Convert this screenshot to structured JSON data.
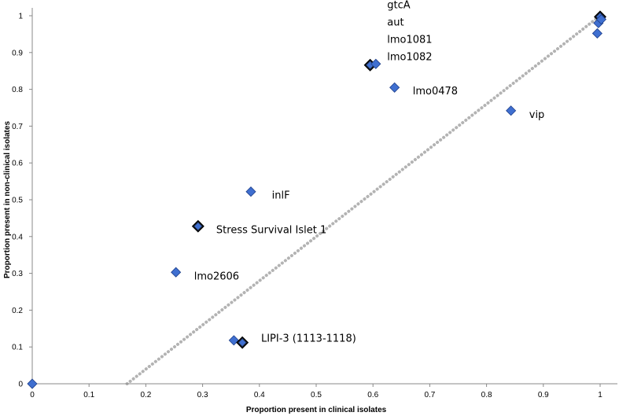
{
  "chart_data": {
    "type": "scatter",
    "xlabel": "Proportion present in clinical isolates",
    "ylabel": "Proportion present in non-clinical isolates",
    "xlim": [
      0,
      1
    ],
    "ylim": [
      0,
      1
    ],
    "x_ticks": [
      "0",
      "0.1",
      "0.2",
      "0.3",
      "0.4",
      "0.5",
      "0.6",
      "0.7",
      "0.8",
      "0.9",
      "1"
    ],
    "y_ticks": [
      "0",
      "0.1",
      "0.2",
      "0.3",
      "0.4",
      "0.5",
      "0.6",
      "0.7",
      "0.8",
      "0.9",
      "1"
    ],
    "grid": false,
    "marker_color": "#3f6fd0",
    "dark_marker_color": "#1c2a45",
    "trend_color": "#b3b3b3",
    "trendline": {
      "style": "dotted",
      "from": [
        0.167,
        0
      ],
      "to": [
        1,
        1
      ]
    },
    "points": [
      {
        "x": 0.0,
        "y": 0.0,
        "dark": false
      },
      {
        "x": 0.253,
        "y": 0.303,
        "dark": false
      },
      {
        "x": 0.292,
        "y": 0.428,
        "dark": true
      },
      {
        "x": 0.385,
        "y": 0.522,
        "dark": false
      },
      {
        "x": 0.355,
        "y": 0.118,
        "dark": false
      },
      {
        "x": 0.37,
        "y": 0.112,
        "dark": true
      },
      {
        "x": 0.595,
        "y": 0.866,
        "dark": true
      },
      {
        "x": 0.605,
        "y": 0.869,
        "dark": false
      },
      {
        "x": 0.638,
        "y": 0.805,
        "dark": false
      },
      {
        "x": 0.843,
        "y": 0.742,
        "dark": false
      },
      {
        "x": 0.995,
        "y": 0.952,
        "dark": false
      },
      {
        "x": 0.997,
        "y": 0.98,
        "dark": false
      },
      {
        "x": 1.0,
        "y": 0.997,
        "dark": true
      },
      {
        "x": 1.002,
        "y": 0.99,
        "dark": false
      }
    ],
    "annotations": [
      {
        "text": "gtcA",
        "x": 0.625,
        "y": 1.031
      },
      {
        "text": "aut",
        "x": 0.625,
        "y": 0.984
      },
      {
        "text": "lmo1081",
        "x": 0.625,
        "y": 0.937
      },
      {
        "text": "lmo1082",
        "x": 0.625,
        "y": 0.89
      },
      {
        "text": "lmo0478",
        "x": 0.67,
        "y": 0.797
      },
      {
        "text": "vip",
        "x": 0.875,
        "y": 0.733
      },
      {
        "text": "inlF",
        "x": 0.422,
        "y": 0.514
      },
      {
        "text": "Stress Survival Islet 1",
        "x": 0.324,
        "y": 0.42
      },
      {
        "text": "lmo2606",
        "x": 0.285,
        "y": 0.294
      },
      {
        "text": "LIPI-3 (1113-1118)",
        "x": 0.403,
        "y": 0.125
      }
    ]
  }
}
